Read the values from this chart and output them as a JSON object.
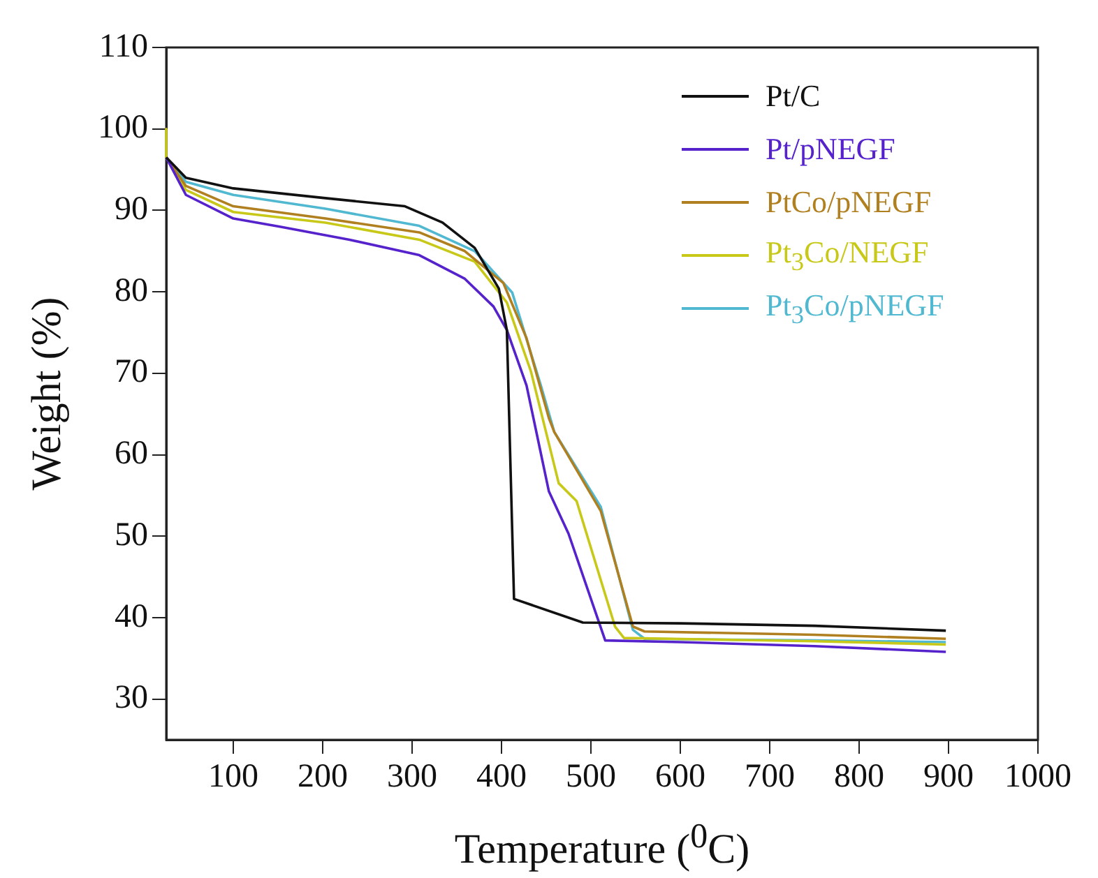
{
  "chart_data": {
    "type": "line",
    "xlabel": "Temperature ($^{0}$C)",
    "ylabel": "Weight (%)",
    "xlim": [
      25,
      1000
    ],
    "ylim": [
      25,
      110
    ],
    "xticks": [
      100,
      200,
      300,
      400,
      500,
      600,
      700,
      800,
      900,
      1000
    ],
    "yticks": [
      30,
      40,
      50,
      60,
      70,
      80,
      90,
      100,
      110
    ],
    "grid": false,
    "legend": "top right",
    "marker": "none",
    "line_style": "solid",
    "series": [
      {
        "name": "Pt/C",
        "color": "#111111",
        "x": [
          25,
          47,
          100,
          203,
          292,
          334,
          370,
          397,
          406,
          414,
          491,
          600,
          750,
          897
        ],
        "values": [
          96.5,
          94,
          92.7,
          91.5,
          90.5,
          88.5,
          85.4,
          80.4,
          75.3,
          42.3,
          39.4,
          39.3,
          39,
          38.4
        ]
      },
      {
        "name": "Pt/pNEGF",
        "color": "#5522cc",
        "x": [
          25,
          47,
          100,
          152,
          230,
          308,
          359,
          391,
          406,
          428,
          453,
          475,
          516,
          600,
          750,
          897
        ],
        "values": [
          96.5,
          91.9,
          89,
          88,
          86.4,
          84.5,
          81.6,
          78.2,
          75.3,
          68.5,
          55.5,
          50.3,
          37.2,
          37,
          36.5,
          35.8
        ]
      },
      {
        "name": "PtCo/pNEGF",
        "color": "#b08020",
        "x": [
          25,
          47,
          100,
          203,
          308,
          359,
          402,
          428,
          453,
          459,
          511,
          547,
          560,
          750,
          897
        ],
        "values": [
          96.5,
          93,
          90.5,
          89,
          87.3,
          85,
          81.1,
          74.3,
          64.5,
          62.8,
          53.1,
          38.9,
          38.3,
          37.9,
          37.4
        ]
      },
      {
        "name": "Pt$_{3}$Co/NEGF",
        "color": "#c8c818",
        "x": [
          25,
          25,
          47,
          100,
          203,
          308,
          370,
          406,
          433,
          464,
          484,
          527,
          537,
          750,
          897
        ],
        "values": [
          100,
          96.5,
          92.5,
          89.8,
          88.5,
          86.4,
          83.7,
          78.7,
          70.2,
          56.5,
          54.3,
          38.9,
          37.5,
          37.1,
          36.7
        ]
      },
      {
        "name": "Pt$_{3}$Co/pNEGF",
        "color": "#50b8d0",
        "x": [
          25,
          47,
          100,
          203,
          308,
          370,
          412,
          444,
          459,
          511,
          547,
          560,
          750,
          897
        ],
        "values": [
          96.5,
          93.5,
          91.9,
          90.2,
          88.1,
          85,
          79.9,
          68.5,
          62.8,
          53.6,
          38.5,
          37.4,
          37.2,
          37
        ]
      }
    ]
  }
}
